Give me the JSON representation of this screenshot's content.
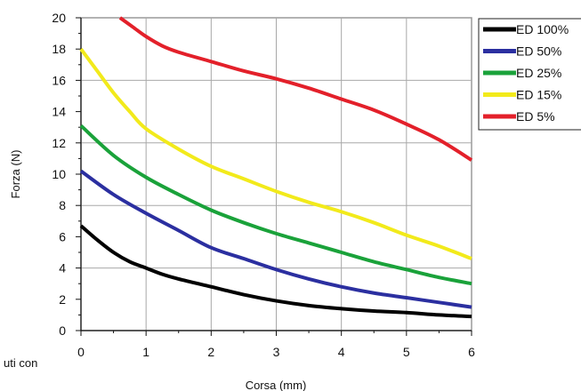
{
  "chart_data": {
    "type": "line",
    "title": "",
    "xlabel": "Corsa (mm)",
    "ylabel": "Forza (N)",
    "xlim": [
      0,
      6
    ],
    "ylim": [
      0,
      20
    ],
    "xticks": [
      0,
      1,
      2,
      3,
      4,
      5,
      6
    ],
    "yticks": [
      0,
      2,
      4,
      6,
      8,
      10,
      12,
      14,
      16,
      18,
      20
    ],
    "grid": true,
    "legend_position": "top-right, outside plot",
    "series": [
      {
        "name": "ED 100%",
        "color": "#000000",
        "x": [
          0,
          0.25,
          0.5,
          0.75,
          1.0,
          1.25,
          1.5,
          2.0,
          2.5,
          3.0,
          3.5,
          4.0,
          4.5,
          5.0,
          5.5,
          6.0
        ],
        "y": [
          6.7,
          5.8,
          5.0,
          4.4,
          4.0,
          3.6,
          3.3,
          2.8,
          2.3,
          1.9,
          1.6,
          1.4,
          1.25,
          1.15,
          1.0,
          0.9
        ]
      },
      {
        "name": "ED 50%",
        "color": "#2b2fa0",
        "x": [
          0,
          0.5,
          1.0,
          1.5,
          2.0,
          2.5,
          3.0,
          3.5,
          4.0,
          4.5,
          5.0,
          5.5,
          6.0
        ],
        "y": [
          10.2,
          8.7,
          7.5,
          6.4,
          5.3,
          4.6,
          3.9,
          3.3,
          2.8,
          2.4,
          2.1,
          1.8,
          1.5
        ]
      },
      {
        "name": "ED 25%",
        "color": "#1aa23a",
        "x": [
          0,
          0.5,
          1.0,
          1.5,
          2.0,
          2.5,
          3.0,
          3.5,
          4.0,
          4.5,
          5.0,
          5.5,
          6.0
        ],
        "y": [
          13.1,
          11.2,
          9.8,
          8.7,
          7.7,
          6.9,
          6.2,
          5.6,
          5.0,
          4.4,
          3.9,
          3.4,
          3.0
        ]
      },
      {
        "name": "ED 15%",
        "color": "#f2ea1b",
        "x": [
          0,
          0.25,
          0.5,
          0.75,
          1.0,
          1.5,
          2.0,
          2.5,
          3.0,
          3.5,
          4.0,
          4.5,
          5.0,
          5.5,
          6.0
        ],
        "y": [
          18.0,
          16.6,
          15.2,
          14.0,
          12.9,
          11.6,
          10.5,
          9.7,
          8.9,
          8.2,
          7.6,
          6.9,
          6.1,
          5.4,
          4.6
        ]
      },
      {
        "name": "ED 5%",
        "color": "#e3202a",
        "x": [
          0.6,
          0.8,
          1.0,
          1.25,
          1.5,
          2.0,
          2.5,
          3.0,
          3.5,
          4.0,
          4.5,
          5.0,
          5.5,
          6.0
        ],
        "y": [
          20.0,
          19.4,
          18.8,
          18.2,
          17.8,
          17.2,
          16.6,
          16.1,
          15.5,
          14.8,
          14.1,
          13.2,
          12.2,
          10.9
        ]
      }
    ]
  },
  "fragment_text": "uti con"
}
